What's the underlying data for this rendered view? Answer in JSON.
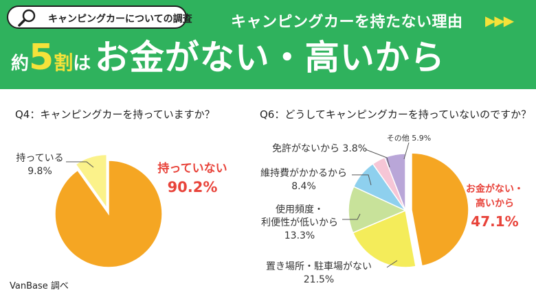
{
  "header": {
    "tag": "キャンピングカーについての調査",
    "subtitle": "キャンピングカーを持たない理由",
    "arrows": "▶▶▶",
    "headline": {
      "prefix": "約",
      "number": "5",
      "unit": "割",
      "particle": "は",
      "main": "お金がない・高いから"
    }
  },
  "colors": {
    "banner": "#2fb25d",
    "accent": "#f5e23a",
    "highlight_text": "#e8433a"
  },
  "chart_data": [
    {
      "type": "pie",
      "title": "Q4：キャンピングカーを持っていますか？",
      "slices": [
        {
          "label": "持っていない",
          "value": 90.2,
          "display": "90.2%",
          "color": "#f5a623"
        },
        {
          "label": "持っている",
          "value": 9.8,
          "display": "9.8%",
          "color": "#fbf28a"
        }
      ]
    },
    {
      "type": "pie",
      "title": "Q6：どうしてキャンピングカーを持っていないのですか？",
      "slices": [
        {
          "label": "お金がない・高いから",
          "value": 47.1,
          "display": "47.1%",
          "color": "#f5a623"
        },
        {
          "label": "置き場所・駐車場がない",
          "value": 21.5,
          "display": "21.5%",
          "color": "#f4ec5a"
        },
        {
          "label": "使用頻度・利便性が低いから",
          "value": 13.3,
          "display": "13.3%",
          "color": "#c8e29a"
        },
        {
          "label": "維持費がかかるから",
          "value": 8.4,
          "display": "8.4%",
          "color": "#8ed0ee"
        },
        {
          "label": "免許がないから",
          "value": 3.8,
          "display": "3.8%",
          "color": "#f6c6d6"
        },
        {
          "label": "その他",
          "value": 5.9,
          "display": "5.9%",
          "color": "#b9a6d8"
        }
      ]
    }
  ],
  "labels": {
    "q4_small": {
      "line1": "持っている",
      "line2": "9.8%"
    },
    "q4_big": {
      "line1": "持っていない",
      "line2": "90.2%"
    },
    "q6_money": {
      "line1": "お金がない・",
      "line2": "高いから",
      "line3": "47.1%"
    },
    "q6_parking": {
      "line1": "置き場所・駐車場がない",
      "line2": "21.5%"
    },
    "q6_freq": {
      "line1": "使用頻度・",
      "line2": "利便性が低いから",
      "line3": "13.3%"
    },
    "q6_upkeep": {
      "line1": "維持費がかかるから",
      "line2": "8.4%"
    },
    "q6_license": "免許がないから 3.8%",
    "q6_other": "その他 5.9%"
  },
  "source": "VanBase 調べ"
}
